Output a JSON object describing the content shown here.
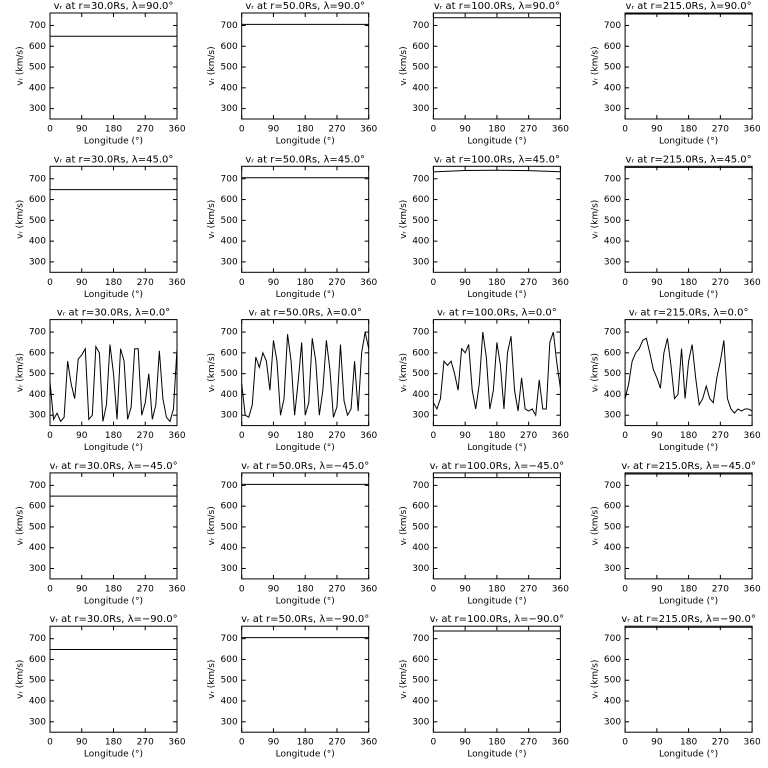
{
  "chart_data": [
    {
      "type": "line",
      "title": "vᵣ at r=30.0Rs,  λ=90.0°",
      "xlabel": "Longitude (°)",
      "ylabel": "vᵣ (km/s)",
      "x": [
        0,
        360
      ],
      "values": [
        648,
        648
      ],
      "color": "#000000",
      "xlim": [
        0,
        360
      ],
      "ylim": [
        250,
        760
      ],
      "xticks": [
        0,
        90,
        180,
        270,
        360
      ],
      "yticks": [
        300,
        400,
        500,
        600,
        700
      ]
    },
    {
      "type": "line",
      "title": "vᵣ at r=50.0Rs,  λ=90.0°",
      "xlabel": "Longitude (°)",
      "ylabel": "vᵣ (km/s)",
      "x": [
        0,
        360
      ],
      "values": [
        705,
        705
      ],
      "color": "#000000",
      "xlim": [
        0,
        360
      ],
      "ylim": [
        250,
        760
      ],
      "xticks": [
        0,
        90,
        180,
        270,
        360
      ],
      "yticks": [
        300,
        400,
        500,
        600,
        700
      ]
    },
    {
      "type": "line",
      "title": "vᵣ at r=100.0Rs,  λ=90.0°",
      "xlabel": "Longitude (°)",
      "ylabel": "vᵣ (km/s)",
      "x": [
        0,
        360
      ],
      "values": [
        737,
        737
      ],
      "color": "#000000",
      "xlim": [
        0,
        360
      ],
      "ylim": [
        250,
        760
      ],
      "xticks": [
        0,
        90,
        180,
        270,
        360
      ],
      "yticks": [
        300,
        400,
        500,
        600,
        700
      ]
    },
    {
      "type": "line",
      "title": "vᵣ at r=215.0Rs,  λ=90.0°",
      "xlabel": "Longitude (°)",
      "ylabel": "vᵣ (km/s)",
      "x": [
        0,
        360
      ],
      "values": [
        755,
        755
      ],
      "color": "#000000",
      "xlim": [
        0,
        360
      ],
      "ylim": [
        250,
        760
      ],
      "xticks": [
        0,
        90,
        180,
        270,
        360
      ],
      "yticks": [
        300,
        400,
        500,
        600,
        700
      ]
    },
    {
      "type": "line",
      "title": "vᵣ at r=30.0Rs,  λ=45.0°",
      "xlabel": "Longitude (°)",
      "ylabel": "vᵣ (km/s)",
      "x": [
        0,
        360
      ],
      "values": [
        648,
        648
      ],
      "color": "#000000",
      "xlim": [
        0,
        360
      ],
      "ylim": [
        250,
        760
      ],
      "xticks": [
        0,
        90,
        180,
        270,
        360
      ],
      "yticks": [
        300,
        400,
        500,
        600,
        700
      ]
    },
    {
      "type": "line",
      "title": "vᵣ at r=50.0Rs,  λ=45.0°",
      "xlabel": "Longitude (°)",
      "ylabel": "vᵣ (km/s)",
      "x": [
        0,
        360
      ],
      "values": [
        705,
        705
      ],
      "color": "#000000",
      "xlim": [
        0,
        360
      ],
      "ylim": [
        250,
        760
      ],
      "xticks": [
        0,
        90,
        180,
        270,
        360
      ],
      "yticks": [
        300,
        400,
        500,
        600,
        700
      ]
    },
    {
      "type": "line",
      "title": "vᵣ at r=100.0Rs,  λ=45.0°",
      "xlabel": "Longitude (°)",
      "ylabel": "vᵣ (km/s)",
      "x": [
        0,
        90,
        180,
        270,
        360
      ],
      "values": [
        733,
        740,
        741,
        739,
        734
      ],
      "color": "#000000",
      "xlim": [
        0,
        360
      ],
      "ylim": [
        250,
        760
      ],
      "xticks": [
        0,
        90,
        180,
        270,
        360
      ],
      "yticks": [
        300,
        400,
        500,
        600,
        700
      ]
    },
    {
      "type": "line",
      "title": "vᵣ at r=215.0Rs,  λ=45.0°",
      "xlabel": "Longitude (°)",
      "ylabel": "vᵣ (km/s)",
      "x": [
        0,
        360
      ],
      "values": [
        755,
        755
      ],
      "color": "#000000",
      "xlim": [
        0,
        360
      ],
      "ylim": [
        250,
        760
      ],
      "xticks": [
        0,
        90,
        180,
        270,
        360
      ],
      "yticks": [
        300,
        400,
        500,
        600,
        700
      ]
    },
    {
      "type": "line",
      "title": "vᵣ at r=30.0Rs,  λ=0.0°",
      "xlabel": "Longitude (°)",
      "ylabel": "vᵣ (km/s)",
      "x": [
        0,
        10,
        20,
        30,
        40,
        50,
        60,
        70,
        80,
        90,
        100,
        110,
        120,
        130,
        140,
        150,
        160,
        170,
        180,
        190,
        200,
        210,
        220,
        230,
        240,
        250,
        260,
        270,
        280,
        290,
        300,
        310,
        320,
        330,
        340,
        350,
        360
      ],
      "values": [
        460,
        280,
        310,
        270,
        290,
        560,
        450,
        380,
        570,
        590,
        620,
        280,
        300,
        630,
        600,
        270,
        350,
        640,
        500,
        280,
        620,
        560,
        280,
        340,
        620,
        620,
        300,
        360,
        500,
        280,
        350,
        610,
        380,
        290,
        270,
        330,
        620
      ],
      "color": "#000000",
      "xlim": [
        0,
        360
      ],
      "ylim": [
        250,
        760
      ],
      "xticks": [
        0,
        90,
        180,
        270,
        360
      ],
      "yticks": [
        300,
        400,
        500,
        600,
        700
      ]
    },
    {
      "type": "line",
      "title": "vᵣ at r=50.0Rs,  λ=0.0°",
      "xlabel": "Longitude (°)",
      "ylabel": "vᵣ (km/s)",
      "x": [
        0,
        10,
        20,
        30,
        40,
        50,
        60,
        70,
        80,
        90,
        100,
        110,
        120,
        130,
        140,
        150,
        160,
        170,
        180,
        190,
        200,
        210,
        220,
        230,
        240,
        250,
        260,
        270,
        280,
        290,
        300,
        310,
        320,
        330,
        340,
        350,
        360
      ],
      "values": [
        450,
        300,
        290,
        350,
        580,
        530,
        600,
        560,
        420,
        660,
        560,
        300,
        380,
        690,
        560,
        300,
        460,
        650,
        300,
        360,
        670,
        560,
        300,
        420,
        660,
        520,
        290,
        340,
        640,
        370,
        300,
        330,
        560,
        320,
        600,
        700,
        620
      ],
      "color": "#000000",
      "xlim": [
        0,
        360
      ],
      "ylim": [
        250,
        760
      ],
      "xticks": [
        0,
        90,
        180,
        270,
        360
      ],
      "yticks": [
        300,
        400,
        500,
        600,
        700
      ]
    },
    {
      "type": "line",
      "title": "vᵣ at r=100.0Rs,  λ=0.0°",
      "xlabel": "Longitude (°)",
      "ylabel": "vᵣ (km/s)",
      "x": [
        0,
        10,
        20,
        30,
        40,
        50,
        60,
        70,
        80,
        90,
        100,
        110,
        120,
        130,
        140,
        150,
        160,
        170,
        180,
        190,
        200,
        210,
        220,
        230,
        240,
        250,
        260,
        270,
        280,
        290,
        300,
        310,
        320,
        330,
        340,
        350,
        360
      ],
      "values": [
        360,
        330,
        380,
        560,
        540,
        560,
        500,
        420,
        620,
        600,
        640,
        420,
        330,
        450,
        700,
        580,
        330,
        420,
        650,
        540,
        330,
        600,
        680,
        420,
        320,
        480,
        330,
        320,
        330,
        300,
        470,
        330,
        330,
        650,
        700,
        550,
        430
      ],
      "color": "#000000",
      "xlim": [
        0,
        360
      ],
      "ylim": [
        250,
        760
      ],
      "xticks": [
        0,
        90,
        180,
        270,
        360
      ],
      "yticks": [
        300,
        400,
        500,
        600,
        700
      ]
    },
    {
      "type": "line",
      "title": "vᵣ at r=215.0Rs,  λ=0.0°",
      "xlabel": "Longitude (°)",
      "ylabel": "vᵣ (km/s)",
      "x": [
        0,
        10,
        20,
        30,
        40,
        50,
        60,
        70,
        80,
        90,
        100,
        110,
        120,
        130,
        140,
        150,
        160,
        170,
        180,
        190,
        200,
        210,
        220,
        230,
        240,
        250,
        260,
        270,
        280,
        290,
        300,
        310,
        320,
        330,
        340,
        350,
        360
      ],
      "values": [
        380,
        450,
        560,
        600,
        620,
        660,
        670,
        600,
        520,
        480,
        430,
        600,
        670,
        540,
        380,
        400,
        620,
        380,
        560,
        640,
        480,
        350,
        380,
        440,
        380,
        360,
        480,
        560,
        660,
        380,
        330,
        310,
        330,
        320,
        330,
        330,
        320
      ],
      "color": "#000000",
      "xlim": [
        0,
        360
      ],
      "ylim": [
        250,
        760
      ],
      "xticks": [
        0,
        90,
        180,
        270,
        360
      ],
      "yticks": [
        300,
        400,
        500,
        600,
        700
      ]
    },
    {
      "type": "line",
      "title": "vᵣ at r=30.0Rs,  λ=−45.0°",
      "xlabel": "Longitude (°)",
      "ylabel": "vᵣ (km/s)",
      "x": [
        0,
        360
      ],
      "values": [
        648,
        648
      ],
      "color": "#000000",
      "xlim": [
        0,
        360
      ],
      "ylim": [
        250,
        760
      ],
      "xticks": [
        0,
        90,
        180,
        270,
        360
      ],
      "yticks": [
        300,
        400,
        500,
        600,
        700
      ]
    },
    {
      "type": "line",
      "title": "vᵣ at r=50.0Rs,  λ=−45.0°",
      "xlabel": "Longitude (°)",
      "ylabel": "vᵣ (km/s)",
      "x": [
        0,
        360
      ],
      "values": [
        705,
        705
      ],
      "color": "#000000",
      "xlim": [
        0,
        360
      ],
      "ylim": [
        250,
        760
      ],
      "xticks": [
        0,
        90,
        180,
        270,
        360
      ],
      "yticks": [
        300,
        400,
        500,
        600,
        700
      ]
    },
    {
      "type": "line",
      "title": "vᵣ at r=100.0Rs,  λ=−45.0°",
      "xlabel": "Longitude (°)",
      "ylabel": "vᵣ (km/s)",
      "x": [
        0,
        360
      ],
      "values": [
        737,
        737
      ],
      "color": "#000000",
      "xlim": [
        0,
        360
      ],
      "ylim": [
        250,
        760
      ],
      "xticks": [
        0,
        90,
        180,
        270,
        360
      ],
      "yticks": [
        300,
        400,
        500,
        600,
        700
      ]
    },
    {
      "type": "line",
      "title": "vᵣ at r=215.0Rs,  λ=−45.0°",
      "xlabel": "Longitude (°)",
      "ylabel": "vᵣ (km/s)",
      "x": [
        0,
        360
      ],
      "values": [
        755,
        755
      ],
      "color": "#000000",
      "xlim": [
        0,
        360
      ],
      "ylim": [
        250,
        760
      ],
      "xticks": [
        0,
        90,
        180,
        270,
        360
      ],
      "yticks": [
        300,
        400,
        500,
        600,
        700
      ]
    },
    {
      "type": "line",
      "title": "vᵣ at r=30.0Rs,  λ=−90.0°",
      "xlabel": "Longitude (°)",
      "ylabel": "vᵣ (km/s)",
      "x": [
        0,
        360
      ],
      "values": [
        648,
        648
      ],
      "color": "#000000",
      "xlim": [
        0,
        360
      ],
      "ylim": [
        250,
        760
      ],
      "xticks": [
        0,
        90,
        180,
        270,
        360
      ],
      "yticks": [
        300,
        400,
        500,
        600,
        700
      ]
    },
    {
      "type": "line",
      "title": "vᵣ at r=50.0Rs,  λ=−90.0°",
      "xlabel": "Longitude (°)",
      "ylabel": "vᵣ (km/s)",
      "x": [
        0,
        360
      ],
      "values": [
        705,
        705
      ],
      "color": "#000000",
      "xlim": [
        0,
        360
      ],
      "ylim": [
        250,
        760
      ],
      "xticks": [
        0,
        90,
        180,
        270,
        360
      ],
      "yticks": [
        300,
        400,
        500,
        600,
        700
      ]
    },
    {
      "type": "line",
      "title": "vᵣ at r=100.0Rs,  λ=−90.0°",
      "xlabel": "Longitude (°)",
      "ylabel": "vᵣ (km/s)",
      "x": [
        0,
        360
      ],
      "values": [
        737,
        737
      ],
      "color": "#000000",
      "xlim": [
        0,
        360
      ],
      "ylim": [
        250,
        760
      ],
      "xticks": [
        0,
        90,
        180,
        270,
        360
      ],
      "yticks": [
        300,
        400,
        500,
        600,
        700
      ]
    },
    {
      "type": "line",
      "title": "vᵣ at r=215.0Rs,  λ=−90.0°",
      "xlabel": "Longitude (°)",
      "ylabel": "vᵣ (km/s)",
      "x": [
        0,
        360
      ],
      "values": [
        755,
        755
      ],
      "color": "#000000",
      "xlim": [
        0,
        360
      ],
      "ylim": [
        250,
        760
      ],
      "xticks": [
        0,
        90,
        180,
        270,
        360
      ],
      "yticks": [
        300,
        400,
        500,
        600,
        700
      ]
    }
  ]
}
